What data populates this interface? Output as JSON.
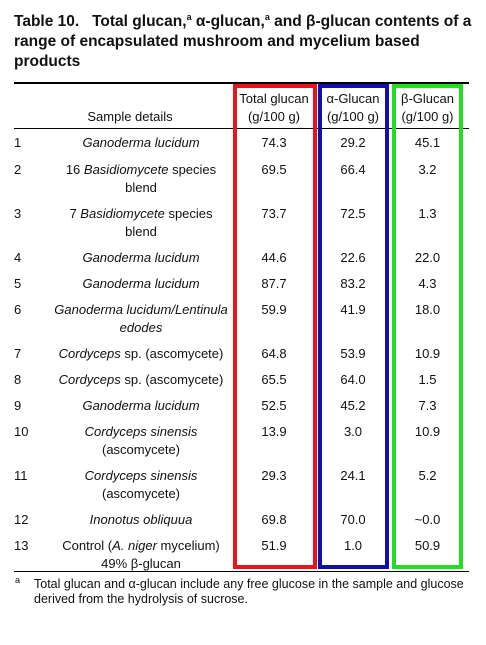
{
  "title": {
    "label": "Table 10.",
    "parts": [
      {
        "text": "Total glucan,"
      },
      {
        "sup": "a"
      },
      {
        "text": " α-glucan,"
      },
      {
        "sup": "a"
      },
      {
        "text": " and β-glucan contents of a range of encapsulated mushroom and mycelium based products"
      }
    ]
  },
  "table": {
    "header": {
      "sample": "Sample details",
      "columns": [
        {
          "name": "Total glucan",
          "unit": "(g/100 g)"
        },
        {
          "name": "α-Glucan",
          "unit": "(g/100 g)"
        },
        {
          "name": "β-Glucan",
          "unit": "(g/100 g)"
        }
      ]
    },
    "rows": [
      {
        "no": "1",
        "sample": [
          {
            "italic": "Ganoderma lucidum"
          }
        ],
        "cells": [
          "74.3",
          "29.2",
          "45.1"
        ]
      },
      {
        "no": "2",
        "sample": [
          {
            "text": "16 "
          },
          {
            "italic": "Basidiomycete"
          },
          {
            "text": " species blend"
          }
        ],
        "cells": [
          "69.5",
          "66.4",
          "3.2"
        ]
      },
      {
        "no": "3",
        "sample": [
          {
            "text": "7 "
          },
          {
            "italic": "Basidiomycete"
          },
          {
            "text": " species blend"
          }
        ],
        "cells": [
          "73.7",
          "72.5",
          "1.3"
        ]
      },
      {
        "no": "4",
        "sample": [
          {
            "italic": "Ganoderma lucidum"
          }
        ],
        "cells": [
          "44.6",
          "22.6",
          "22.0"
        ]
      },
      {
        "no": "5",
        "sample": [
          {
            "italic": "Ganoderma lucidum"
          }
        ],
        "cells": [
          "87.7",
          "83.2",
          "4.3"
        ]
      },
      {
        "no": "6",
        "sample": [
          {
            "italic": "Ganoderma lucidum/Lentinula edodes"
          }
        ],
        "cells": [
          "59.9",
          "41.9",
          "18.0"
        ]
      },
      {
        "no": "7",
        "sample": [
          {
            "italic": "Cordyceps"
          },
          {
            "text": " sp. (ascomycete)"
          }
        ],
        "cells": [
          "64.8",
          "53.9",
          "10.9"
        ]
      },
      {
        "no": "8",
        "sample": [
          {
            "italic": "Cordyceps"
          },
          {
            "text": " sp. (ascomycete)"
          }
        ],
        "cells": [
          "65.5",
          "64.0",
          "1.5"
        ]
      },
      {
        "no": "9",
        "sample": [
          {
            "italic": "Ganoderma lucidum"
          }
        ],
        "cells": [
          "52.5",
          "45.2",
          "7.3"
        ]
      },
      {
        "no": "10",
        "sample": [
          {
            "italic": "Cordyceps sinensis"
          },
          {
            "text": " (ascomycete)"
          }
        ],
        "cells": [
          "13.9",
          "3.0",
          "10.9"
        ]
      },
      {
        "no": "11",
        "sample": [
          {
            "italic": "Cordyceps sinensis"
          },
          {
            "text": " (ascomycete)"
          }
        ],
        "cells": [
          "29.3",
          "24.1",
          "5.2"
        ]
      },
      {
        "no": "12",
        "sample": [
          {
            "italic": "Inonotus obliquua"
          }
        ],
        "cells": [
          "69.8",
          "70.0",
          "~0.0"
        ]
      },
      {
        "no": "13",
        "sample": [
          {
            "text": "Control ("
          },
          {
            "italic": "A. niger"
          },
          {
            "text": " mycelium) 49% β-glucan"
          }
        ],
        "cells": [
          "51.9",
          "1.0",
          "50.9"
        ]
      }
    ]
  },
  "footnote": {
    "mark": "a",
    "text": "Total glucan and α-glucan include any free glucose in the sample and glucose derived from the hydrolysis of sucrose."
  }
}
